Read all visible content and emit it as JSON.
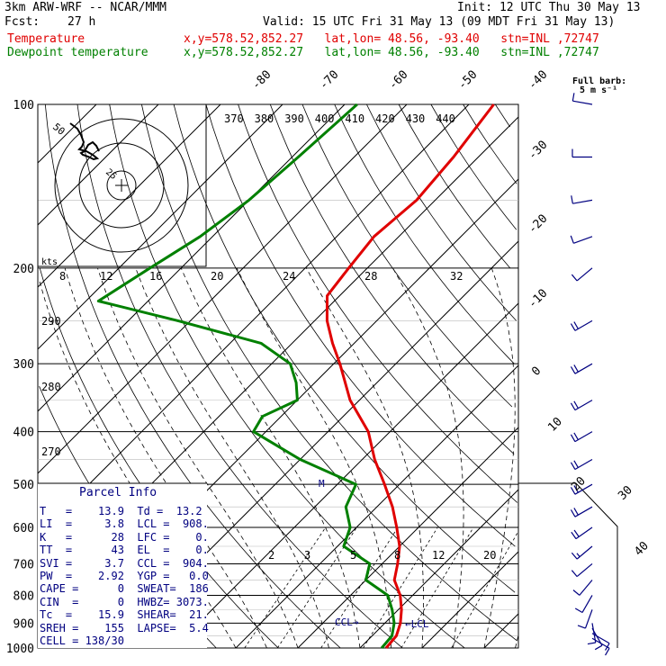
{
  "header": {
    "model": "3km ARW-WRF -- NCAR/MMM",
    "init": "Init: 12 UTC Thu 30 May 13",
    "fcst_label": "Fcst:",
    "fcst_value": "27 h",
    "valid": "Valid: 15 UTC Fri 31 May 13 (09 MDT Fri 31 May 13)",
    "temp_label": "Temperature",
    "temp_info": "x,y=578.52,852.27   lat,lon= 48.56, -93.40   stn=INL ,72747",
    "dew_label": "Dewpoint temperature",
    "dew_info": "x,y=578.52,852.27   lat,lon= 48.56, -93.40   stn=INL ,72747"
  },
  "colors": {
    "temperature": "#e00000",
    "dewpoint": "#008000",
    "wind": "#000080",
    "grid": "#000000"
  },
  "barb_label": [
    "Full barb:",
    "5 m s⁻¹"
  ],
  "hodograph_labels": {
    "outer": "50",
    "inner": "25",
    "units": "kts"
  },
  "parcel_info": {
    "title": "Parcel Info",
    "lines": [
      "T   =    13.9  Td =  13.2",
      "LI  =     3.8  LCL =  908.",
      "K   =      28  LFC =    0.",
      "TT  =      43  EL  =    0.",
      "SVI =     3.7  CCL =  904.",
      "PW  =    2.92  YGP =   0.0",
      "CAPE =      0  SWEAT=  186",
      "CIN  =      0  HWBZ= 3073.",
      "Tc  =    15.9  SHEAR=  21.",
      "SREH =    155  LAPSE=  5.4",
      "CELL = 138/30"
    ]
  },
  "chart_data": {
    "type": "skew-t",
    "pressure_ticks": [
      100,
      200,
      300,
      400,
      500,
      600,
      700,
      800,
      900,
      1000
    ],
    "isotherm_labels": [
      -80,
      -70,
      -60,
      -50,
      -40,
      -30,
      -20,
      -10,
      0,
      10,
      20,
      30,
      40
    ],
    "theta_labels": [
      "370",
      "380",
      "390",
      "400",
      "410",
      "420",
      "430",
      "440"
    ],
    "theta_lower_labels": [
      "290",
      "280",
      "270"
    ],
    "mixing_ratio_labels": [
      "2",
      "3",
      "5",
      "8",
      "12",
      "20"
    ],
    "wind_speed_axis_labels": [
      "8",
      "12",
      "16",
      "20",
      "24",
      "28",
      "32"
    ],
    "annotations": {
      "ccl": "CCL",
      "lcl": "LCL",
      "melting": "M"
    },
    "temperature": [
      {
        "p": 1000,
        "t": 14.2
      },
      {
        "p": 950,
        "t": 13.9
      },
      {
        "p": 900,
        "t": 12.5
      },
      {
        "p": 850,
        "t": 10.5
      },
      {
        "p": 800,
        "t": 8.0
      },
      {
        "p": 750,
        "t": 4.6
      },
      {
        "p": 700,
        "t": 2.5
      },
      {
        "p": 650,
        "t": 0.0
      },
      {
        "p": 600,
        "t": -3.5
      },
      {
        "p": 550,
        "t": -7.5
      },
      {
        "p": 500,
        "t": -12.4
      },
      {
        "p": 450,
        "t": -18.0
      },
      {
        "p": 400,
        "t": -23.5
      },
      {
        "p": 350,
        "t": -31.5
      },
      {
        "p": 300,
        "t": -39.0
      },
      {
        "p": 275,
        "t": -43.5
      },
      {
        "p": 250,
        "t": -48.0
      },
      {
        "p": 225,
        "t": -52.0
      },
      {
        "p": 200,
        "t": -53.0
      },
      {
        "p": 175,
        "t": -54.0
      },
      {
        "p": 150,
        "t": -53.0
      },
      {
        "p": 125,
        "t": -54.0
      },
      {
        "p": 100,
        "t": -56.0
      }
    ],
    "dewpoint": [
      {
        "p": 1000,
        "t": 13.5
      },
      {
        "p": 950,
        "t": 13.2
      },
      {
        "p": 900,
        "t": 11.5
      },
      {
        "p": 850,
        "t": 9.0
      },
      {
        "p": 800,
        "t": 6.0
      },
      {
        "p": 750,
        "t": 0.0
      },
      {
        "p": 700,
        "t": -2.0
      },
      {
        "p": 650,
        "t": -9.0
      },
      {
        "p": 600,
        "t": -11.0
      },
      {
        "p": 550,
        "t": -15.0
      },
      {
        "p": 500,
        "t": -17.0
      },
      {
        "p": 450,
        "t": -30.0
      },
      {
        "p": 400,
        "t": -42.0
      },
      {
        "p": 375,
        "t": -43.0
      },
      {
        "p": 350,
        "t": -40.0
      },
      {
        "p": 325,
        "t": -43.0
      },
      {
        "p": 300,
        "t": -47.0
      },
      {
        "p": 275,
        "t": -55.0
      },
      {
        "p": 250,
        "t": -72.0
      },
      {
        "p": 230,
        "t": -88.0
      },
      {
        "p": 200,
        "t": -85.0
      },
      {
        "p": 175,
        "t": -82.0
      },
      {
        "p": 150,
        "t": -80.0
      },
      {
        "p": 125,
        "t": -79.0
      },
      {
        "p": 100,
        "t": -78.0
      }
    ],
    "winds": [
      {
        "p": 960,
        "spd": 12,
        "dir": 120
      },
      {
        "p": 940,
        "spd": 12,
        "dir": 120
      },
      {
        "p": 920,
        "spd": 10,
        "dir": 150
      },
      {
        "p": 900,
        "spd": 8,
        "dir": 170
      },
      {
        "p": 850,
        "spd": 8,
        "dir": 200
      },
      {
        "p": 800,
        "spd": 8,
        "dir": 210
      },
      {
        "p": 750,
        "spd": 10,
        "dir": 220
      },
      {
        "p": 700,
        "spd": 12,
        "dir": 230
      },
      {
        "p": 650,
        "spd": 15,
        "dir": 230
      },
      {
        "p": 600,
        "spd": 18,
        "dir": 235
      },
      {
        "p": 550,
        "spd": 20,
        "dir": 240
      },
      {
        "p": 500,
        "spd": 22,
        "dir": 240
      },
      {
        "p": 450,
        "spd": 22,
        "dir": 240
      },
      {
        "p": 400,
        "spd": 22,
        "dir": 240
      },
      {
        "p": 350,
        "spd": 22,
        "dir": 240
      },
      {
        "p": 300,
        "spd": 20,
        "dir": 240
      },
      {
        "p": 250,
        "spd": 18,
        "dir": 240
      },
      {
        "p": 200,
        "spd": 10,
        "dir": 230
      },
      {
        "p": 175,
        "spd": 8,
        "dir": 250
      },
      {
        "p": 150,
        "spd": 8,
        "dir": 260
      },
      {
        "p": 125,
        "spd": 8,
        "dir": 270
      },
      {
        "p": 100,
        "spd": 10,
        "dir": 280
      }
    ]
  }
}
